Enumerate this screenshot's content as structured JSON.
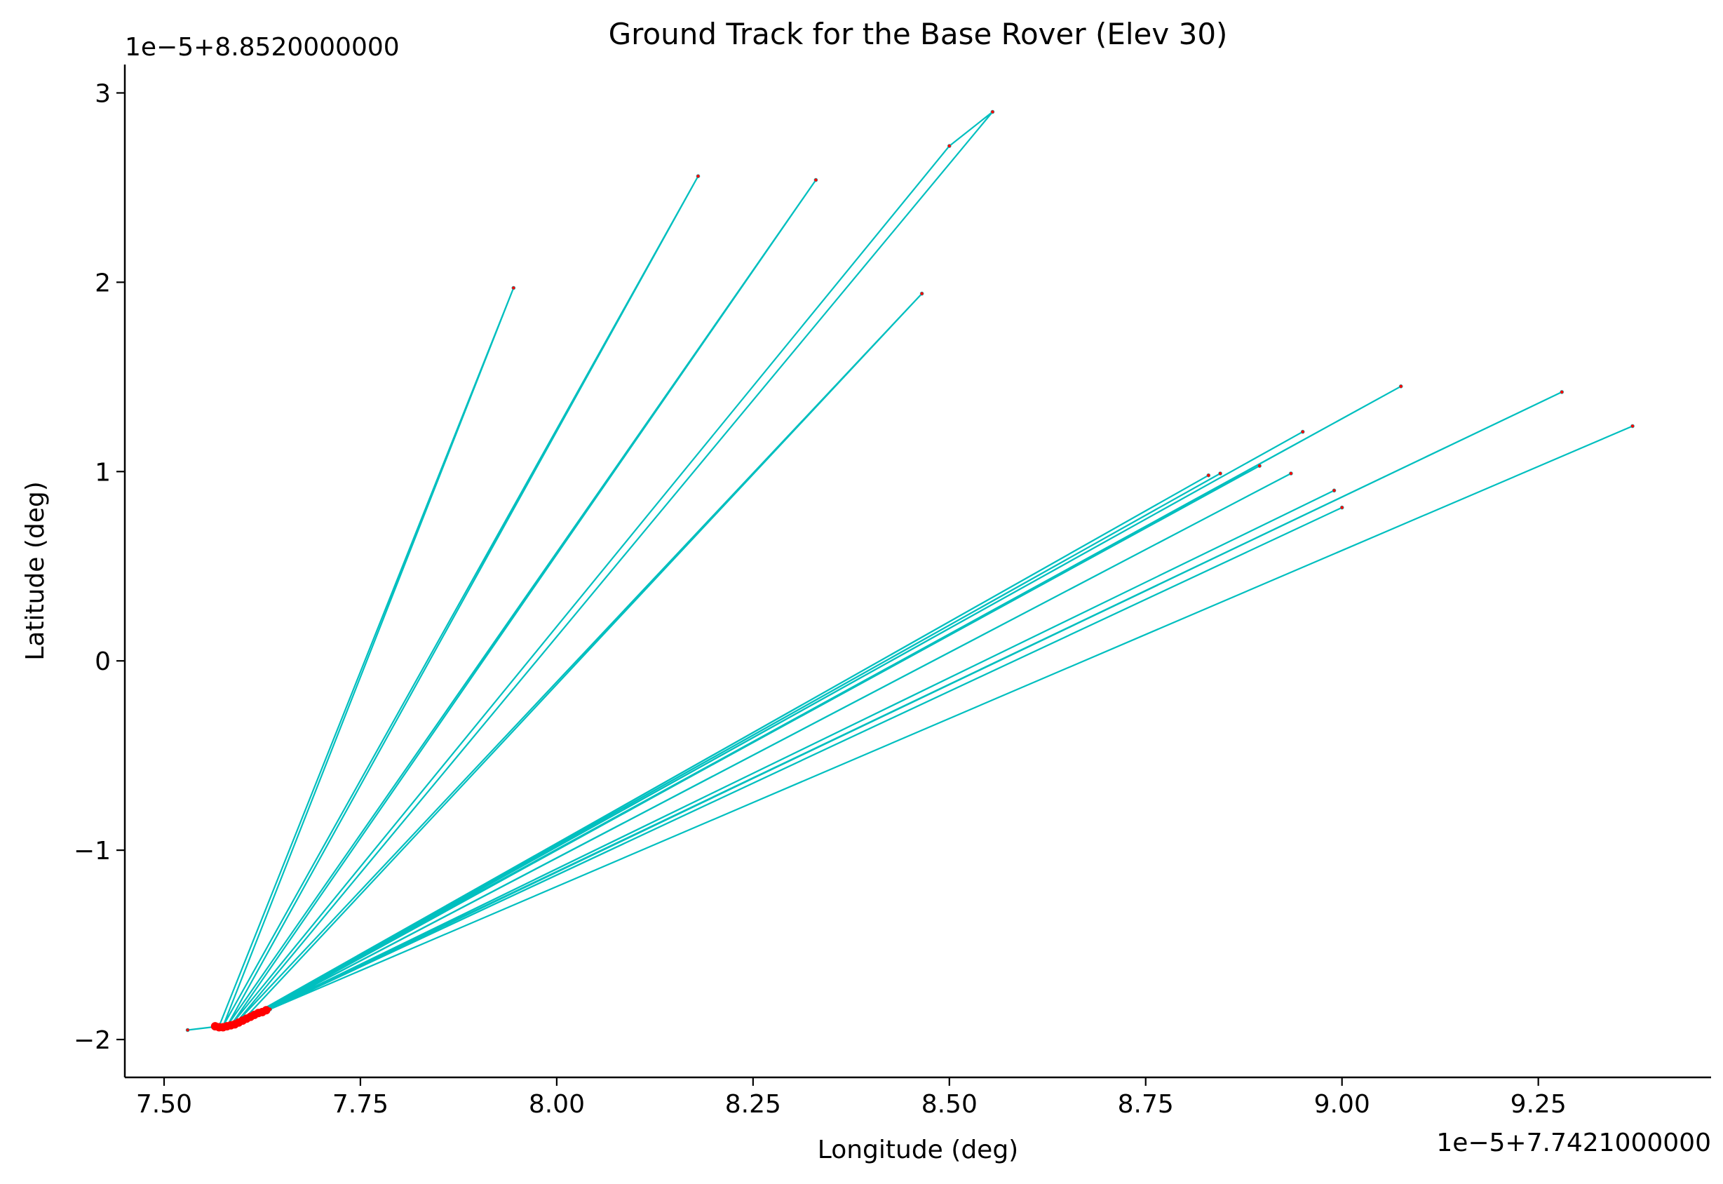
{
  "chart_data": {
    "type": "line",
    "title": "Ground Track for the Base Rover (Elev 30)",
    "xlabel": "Longitude (deg)",
    "ylabel": "Latitude (deg)",
    "x_offset_label": "1e−5+7.7421000000",
    "y_offset_label": "1e−5+8.8520000000",
    "xlim": [
      7.45,
      9.47
    ],
    "ylim": [
      -2.2,
      3.15
    ],
    "xticks": [
      7.5,
      7.75,
      8.0,
      8.25,
      8.5,
      8.75,
      9.0,
      9.25
    ],
    "xtick_labels": [
      "7.50",
      "7.75",
      "8.00",
      "8.25",
      "8.50",
      "8.75",
      "9.00",
      "9.25"
    ],
    "yticks": [
      -2,
      -1,
      0,
      1,
      2,
      3
    ],
    "ytick_labels": [
      "−2",
      "−1",
      "0",
      "1",
      "2",
      "3"
    ],
    "grid": false,
    "line_color": "#00bfbf",
    "marker_color": "#ff0000",
    "series": [
      {
        "x": [
          7.53,
          7.57,
          7.945,
          7.575,
          8.18,
          7.58,
          8.33,
          7.585,
          8.5,
          8.555,
          7.59,
          8.465,
          7.6,
          8.83,
          7.605,
          8.845,
          7.61,
          8.895,
          7.615,
          8.95,
          7.62,
          9.075,
          7.625,
          8.935,
          7.628,
          8.99,
          7.63,
          9.28,
          7.632,
          9.0,
          7.635,
          9.37
        ],
        "y": [
          -1.95,
          -1.93,
          1.97,
          -1.93,
          2.56,
          -1.93,
          2.54,
          -1.925,
          2.72,
          2.9,
          -1.92,
          1.94,
          -1.9,
          0.98,
          -1.89,
          0.99,
          -1.88,
          1.03,
          -1.87,
          1.21,
          -1.86,
          1.45,
          -1.855,
          0.99,
          -1.85,
          0.9,
          -1.845,
          1.42,
          -1.845,
          0.81,
          -1.84,
          1.24
        ]
      }
    ],
    "cluster": {
      "x": [
        7.565,
        7.57,
        7.575,
        7.58,
        7.585,
        7.59,
        7.595,
        7.6,
        7.605,
        7.61,
        7.615,
        7.62,
        7.625,
        7.63
      ],
      "y": [
        -1.93,
        -1.935,
        -1.935,
        -1.93,
        -1.925,
        -1.92,
        -1.91,
        -1.9,
        -1.89,
        -1.88,
        -1.87,
        -1.86,
        -1.855,
        -1.845
      ]
    }
  }
}
